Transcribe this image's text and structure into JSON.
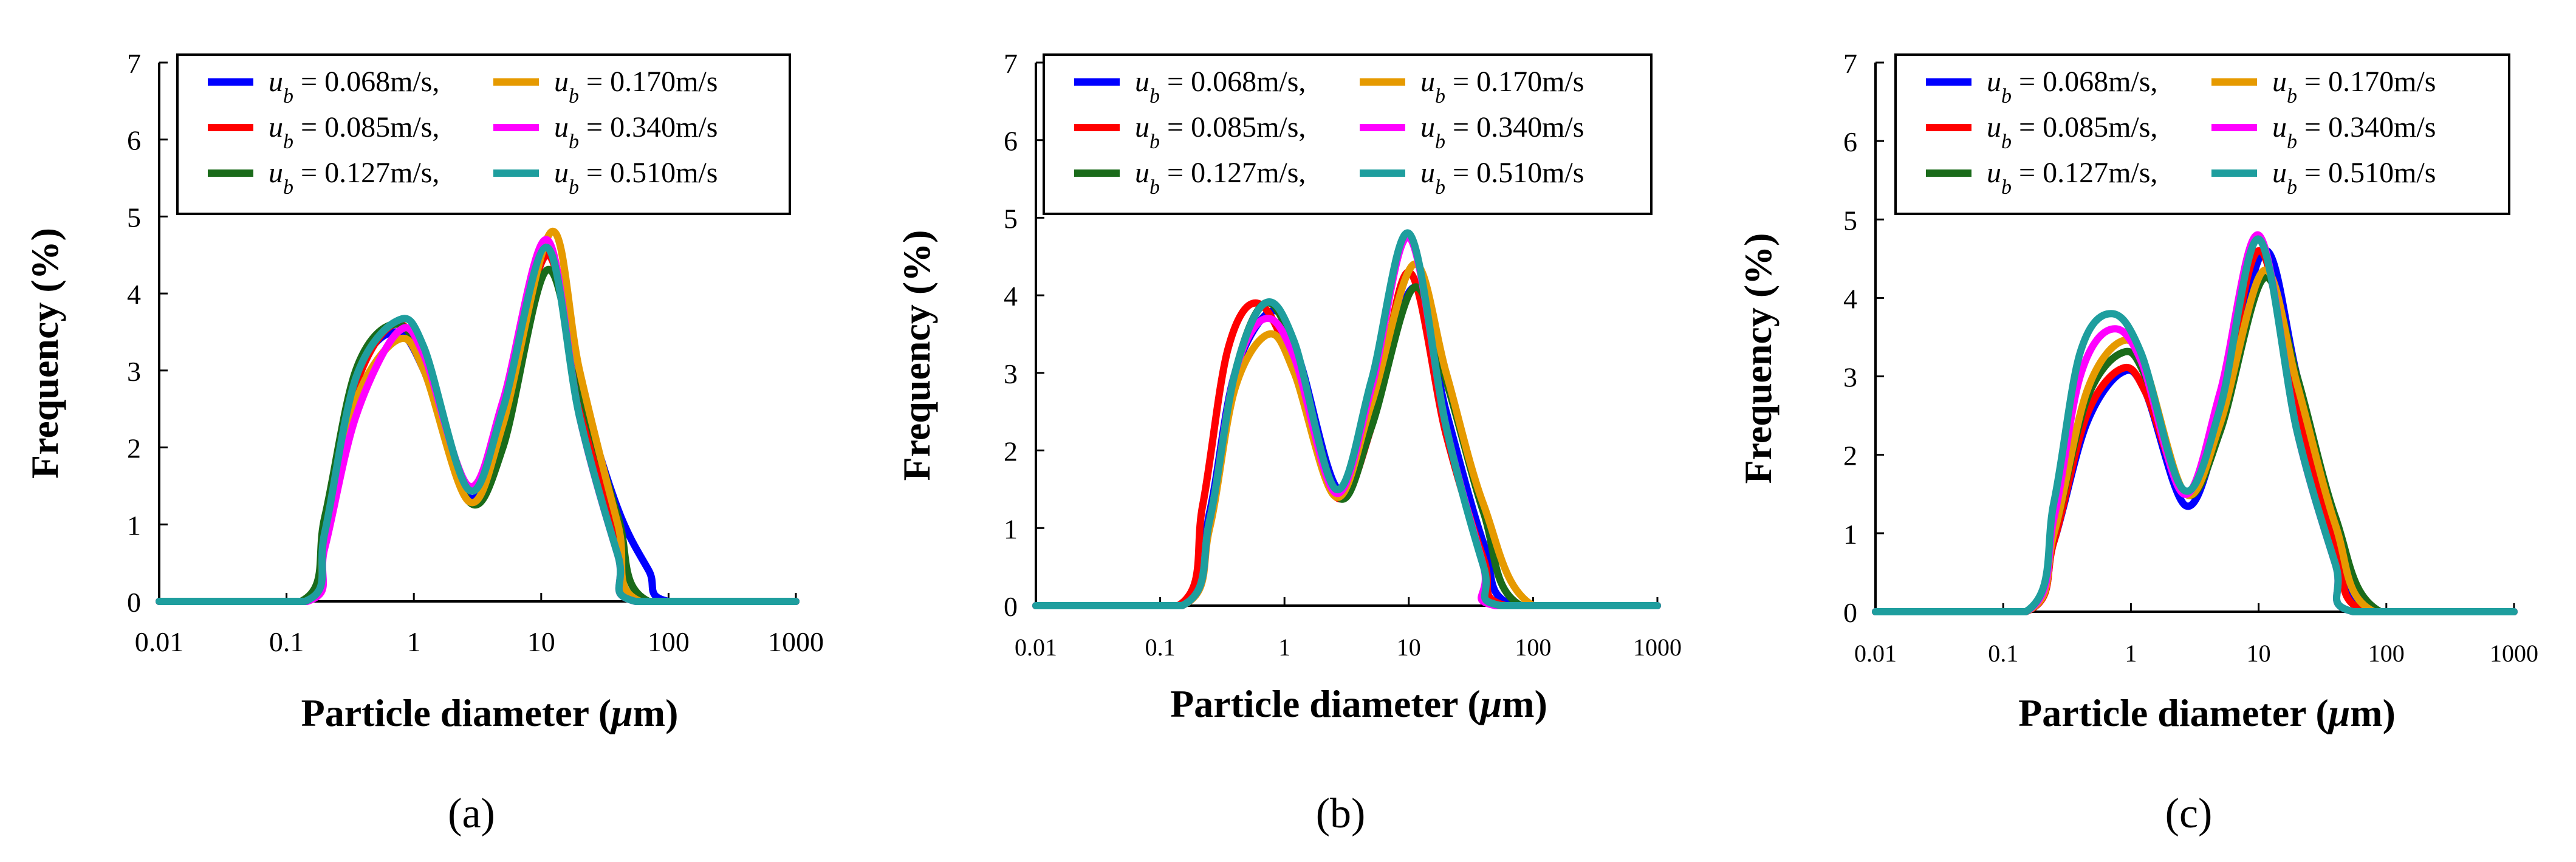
{
  "figure": {
    "y_axis_label": "Frequency (%)",
    "x_axis_label_prefix": "Particle diameter (",
    "x_axis_label_mu": "μ",
    "x_axis_label_suffix": "m)",
    "panel_labels": [
      "(a)",
      "(b)",
      "(c)"
    ]
  },
  "legend": [
    {
      "var": "u",
      "sub": "b",
      "text": " = 0.068m/s,",
      "color": "#0000ff"
    },
    {
      "var": "u",
      "sub": "b",
      "text": " = 0.085m/s,",
      "color": "#ff0000"
    },
    {
      "var": "u",
      "sub": "b",
      "text": " = 0.127m/s,",
      "color": "#1a6b1a"
    },
    {
      "var": "u",
      "sub": "b",
      "text": " = 0.170m/s",
      "color": "#e69a00"
    },
    {
      "var": "u",
      "sub": "b",
      "text": " = 0.340m/s",
      "color": "#ff00ff"
    },
    {
      "var": "u",
      "sub": "b",
      "text": " = 0.510m/s",
      "color": "#1e9e9e"
    }
  ],
  "chart_data": [
    {
      "type": "line",
      "panel": "(a)",
      "xscale": "log",
      "xlim": [
        0.01,
        1000
      ],
      "ylim": [
        0,
        7
      ],
      "xticks": [
        "0.01",
        "0.1",
        "1",
        "10",
        "100",
        "1000"
      ],
      "yticks": [
        "0",
        "1",
        "2",
        "3",
        "4",
        "5",
        "6",
        "7"
      ],
      "xlabel": "Particle diameter (μm)",
      "ylabel": "Frequency (%)",
      "legend_position": "top",
      "series": [
        {
          "name": "u_b = 0.068m/s",
          "color": "#0000ff",
          "x": [
            0.01,
            0.135,
            0.2,
            0.35,
            0.7,
            1.2,
            2.7,
            5,
            11,
            20,
            40,
            70,
            100,
            1000
          ],
          "y": [
            0,
            0,
            1.0,
            2.9,
            3.5,
            3.0,
            1.35,
            2.3,
            4.5,
            2.8,
            1.2,
            0.4,
            0,
            0
          ]
        },
        {
          "name": "u_b = 0.085m/s",
          "color": "#ff0000",
          "x": [
            0.01,
            0.135,
            0.2,
            0.35,
            0.7,
            1.2,
            2.7,
            5,
            11,
            20,
            40,
            60,
            1000
          ],
          "y": [
            0,
            0,
            0.9,
            2.8,
            3.6,
            3.1,
            1.3,
            2.2,
            4.5,
            2.6,
            0.9,
            0,
            0
          ]
        },
        {
          "name": "u_b = 0.127m/s",
          "color": "#1a6b1a",
          "x": [
            0.01,
            0.13,
            0.2,
            0.35,
            0.7,
            1.2,
            2.7,
            5,
            11,
            20,
            40,
            70,
            1000
          ],
          "y": [
            0,
            0,
            1.1,
            3.0,
            3.6,
            3.1,
            1.3,
            2.0,
            4.3,
            2.8,
            1.1,
            0,
            0
          ]
        },
        {
          "name": "u_b = 0.170m/s",
          "color": "#e69a00",
          "x": [
            0.01,
            0.14,
            0.2,
            0.35,
            0.75,
            1.2,
            2.7,
            5,
            12,
            20,
            40,
            60,
            1000
          ],
          "y": [
            0,
            0,
            0.8,
            2.6,
            3.4,
            3.0,
            1.3,
            2.3,
            4.8,
            3.0,
            1.0,
            0,
            0
          ]
        },
        {
          "name": "u_b = 0.340m/s",
          "color": "#ff00ff",
          "x": [
            0.01,
            0.145,
            0.2,
            0.35,
            0.75,
            1.2,
            2.7,
            5,
            11,
            20,
            40,
            55,
            1000
          ],
          "y": [
            0,
            0,
            0.7,
            2.4,
            3.5,
            3.2,
            1.5,
            2.6,
            4.7,
            2.4,
            0.6,
            0,
            0
          ]
        },
        {
          "name": "u_b = 0.510m/s",
          "color": "#1e9e9e",
          "x": [
            0.01,
            0.14,
            0.2,
            0.35,
            0.75,
            1.2,
            2.7,
            5,
            11,
            20,
            40,
            55,
            1000
          ],
          "y": [
            0,
            0,
            0.9,
            2.9,
            3.65,
            3.3,
            1.45,
            2.5,
            4.6,
            2.4,
            0.6,
            0,
            0
          ]
        }
      ]
    },
    {
      "type": "line",
      "panel": "(b)",
      "xscale": "log",
      "xlim": [
        0.01,
        1000
      ],
      "ylim": [
        0,
        7
      ],
      "xticks": [
        "0.01",
        "0.1",
        "1",
        "10",
        "100",
        "1000"
      ],
      "yticks": [
        "0",
        "1",
        "2",
        "3",
        "4",
        "5",
        "6",
        "7"
      ],
      "xlabel": "Particle diameter (μm)",
      "ylabel": "Frequency (%)",
      "legend_position": "top",
      "series": [
        {
          "name": "u_b = 0.068m/s",
          "color": "#0000ff",
          "x": [
            0.01,
            0.15,
            0.25,
            0.4,
            0.8,
            1.3,
            2.7,
            5,
            11,
            20,
            40,
            70,
            1000
          ],
          "y": [
            0,
            0,
            1.2,
            3.0,
            3.8,
            3.2,
            1.5,
            2.4,
            4.1,
            2.5,
            0.8,
            0,
            0
          ]
        },
        {
          "name": "u_b = 0.085m/s",
          "color": "#ff0000",
          "x": [
            0.01,
            0.14,
            0.22,
            0.35,
            0.6,
            1.1,
            2.6,
            5,
            10,
            20,
            40,
            60,
            1000
          ],
          "y": [
            0,
            0,
            1.3,
            3.3,
            3.9,
            3.2,
            1.4,
            2.3,
            4.3,
            2.2,
            0.6,
            0,
            0
          ]
        },
        {
          "name": "u_b = 0.127m/s",
          "color": "#1a6b1a",
          "x": [
            0.01,
            0.15,
            0.25,
            0.4,
            0.7,
            1.2,
            2.7,
            5,
            11,
            20,
            40,
            80,
            1000
          ],
          "y": [
            0,
            0,
            1.1,
            3.0,
            3.9,
            3.3,
            1.4,
            2.3,
            4.1,
            2.9,
            1.2,
            0,
            0
          ]
        },
        {
          "name": "u_b = 0.170m/s",
          "color": "#e69a00",
          "x": [
            0.01,
            0.15,
            0.25,
            0.4,
            0.75,
            1.2,
            2.6,
            5,
            11,
            20,
            40,
            100,
            1000
          ],
          "y": [
            0,
            0,
            1.0,
            2.8,
            3.5,
            3.0,
            1.4,
            2.6,
            4.4,
            3.0,
            1.3,
            0,
            0
          ]
        },
        {
          "name": "u_b = 0.340m/s",
          "color": "#ff00ff",
          "x": [
            0.01,
            0.15,
            0.25,
            0.4,
            0.7,
            1.2,
            2.6,
            5,
            10,
            20,
            40,
            50,
            1000
          ],
          "y": [
            0,
            0,
            1.1,
            3.0,
            3.7,
            3.2,
            1.45,
            2.8,
            4.75,
            2.3,
            0.5,
            0,
            0
          ]
        },
        {
          "name": "u_b = 0.510m/s",
          "color": "#1e9e9e",
          "x": [
            0.01,
            0.15,
            0.25,
            0.4,
            0.7,
            1.2,
            2.6,
            5,
            10,
            20,
            40,
            55,
            1000
          ],
          "y": [
            0,
            0,
            1.1,
            3.0,
            3.9,
            3.4,
            1.5,
            2.9,
            4.8,
            2.3,
            0.5,
            0,
            0
          ]
        }
      ]
    },
    {
      "type": "line",
      "panel": "(c)",
      "xscale": "log",
      "xlim": [
        0.01,
        1000
      ],
      "ylim": [
        0,
        7
      ],
      "xticks": [
        "0.01",
        "0.1",
        "1",
        "10",
        "100",
        "1000"
      ],
      "yticks": [
        "0",
        "1",
        "2",
        "3",
        "4",
        "5",
        "6",
        "7"
      ],
      "xlabel": "Particle diameter (μm)",
      "ylabel": "Frequency (%)",
      "legend_position": "top",
      "series": [
        {
          "name": "u_b = 0.068m/s",
          "color": "#0000ff",
          "x": [
            0.01,
            0.15,
            0.25,
            0.45,
            0.85,
            1.3,
            2.7,
            5,
            11,
            20,
            40,
            80,
            1000
          ],
          "y": [
            0,
            0,
            0.9,
            2.4,
            3.05,
            2.8,
            1.35,
            2.4,
            4.6,
            3.0,
            1.0,
            0,
            0
          ]
        },
        {
          "name": "u_b = 0.085m/s",
          "color": "#ff0000",
          "x": [
            0.01,
            0.15,
            0.25,
            0.45,
            0.85,
            1.3,
            2.7,
            5,
            10,
            20,
            40,
            70,
            1000
          ],
          "y": [
            0,
            0,
            0.9,
            2.5,
            3.1,
            2.8,
            1.5,
            2.5,
            4.6,
            2.6,
            0.8,
            0,
            0
          ]
        },
        {
          "name": "u_b = 0.127m/s",
          "color": "#1a6b1a",
          "x": [
            0.01,
            0.15,
            0.25,
            0.45,
            0.85,
            1.3,
            2.7,
            5,
            11,
            20,
            40,
            90,
            1000
          ],
          "y": [
            0,
            0,
            1.0,
            2.7,
            3.3,
            3.0,
            1.5,
            2.3,
            4.25,
            3.0,
            1.2,
            0,
            0
          ]
        },
        {
          "name": "u_b = 0.170m/s",
          "color": "#e69a00",
          "x": [
            0.01,
            0.15,
            0.25,
            0.45,
            0.85,
            1.3,
            2.7,
            5,
            11,
            20,
            40,
            80,
            1000
          ],
          "y": [
            0,
            0,
            1.0,
            2.8,
            3.45,
            3.1,
            1.5,
            2.4,
            4.35,
            2.9,
            1.1,
            0,
            0
          ]
        },
        {
          "name": "u_b = 0.340m/s",
          "color": "#ff00ff",
          "x": [
            0.01,
            0.15,
            0.25,
            0.4,
            0.7,
            1.2,
            2.6,
            5,
            10,
            20,
            40,
            55,
            1000
          ],
          "y": [
            0,
            0,
            1.2,
            3.0,
            3.6,
            3.2,
            1.5,
            2.8,
            4.8,
            2.3,
            0.6,
            0,
            0
          ]
        },
        {
          "name": "u_b = 0.510m/s",
          "color": "#1e9e9e",
          "x": [
            0.01,
            0.15,
            0.25,
            0.4,
            0.7,
            1.2,
            2.6,
            5,
            10,
            20,
            40,
            55,
            1000
          ],
          "y": [
            0,
            0,
            1.4,
            3.3,
            3.8,
            3.3,
            1.55,
            2.6,
            4.75,
            2.3,
            0.6,
            0,
            0
          ]
        }
      ]
    }
  ]
}
